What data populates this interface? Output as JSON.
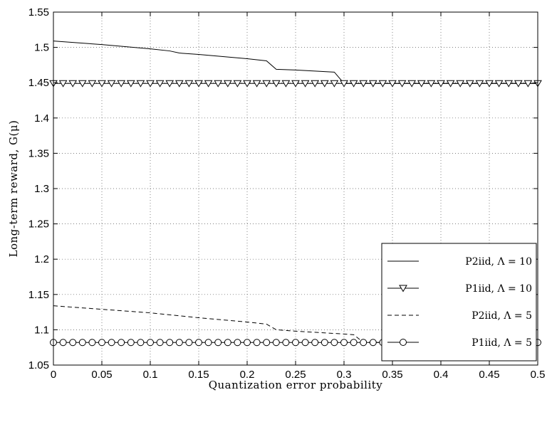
{
  "chart_data": {
    "type": "line",
    "xlabel": "Quantization error probability",
    "ylabel": "Long-term reward, G(μ)",
    "xlim": [
      0,
      0.5
    ],
    "ylim": [
      1.05,
      1.55
    ],
    "grid": true,
    "legend_position": "lower-right",
    "x_ticks": [
      0,
      0.05,
      0.1,
      0.15,
      0.2,
      0.25,
      0.3,
      0.35,
      0.4,
      0.45,
      0.5
    ],
    "x_tick_labels": [
      "0",
      "0.05",
      "0.1",
      "0.15",
      "0.2",
      "0.25",
      "0.3",
      "0.35",
      "0.4",
      "0.45",
      "0.5"
    ],
    "y_ticks": [
      1.05,
      1.1,
      1.15,
      1.2,
      1.25,
      1.3,
      1.35,
      1.4,
      1.45,
      1.5,
      1.55
    ],
    "y_tick_labels": [
      "1.05",
      "1.1",
      "1.15",
      "1.2",
      "1.25",
      "1.3",
      "1.35",
      "1.4",
      "1.45",
      "1.5",
      "1.55"
    ],
    "series": [
      {
        "name": "P2iid, Λ = 10",
        "style": "solid",
        "marker": "none",
        "x": [
          0,
          0.05,
          0.1,
          0.12,
          0.13,
          0.15,
          0.2,
          0.22,
          0.23,
          0.25,
          0.29,
          0.3,
          0.5
        ],
        "y": [
          1.509,
          1.504,
          1.498,
          1.495,
          1.492,
          1.49,
          1.484,
          1.481,
          1.469,
          1.468,
          1.465,
          1.449,
          1.449
        ]
      },
      {
        "name": "P1iid, Λ = 10",
        "style": "solid",
        "marker": "triangle-down",
        "x": [
          0,
          0.01,
          0.02,
          0.03,
          0.04,
          0.05,
          0.06,
          0.07,
          0.08,
          0.09,
          0.1,
          0.11,
          0.12,
          0.13,
          0.14,
          0.15,
          0.16,
          0.17,
          0.18,
          0.19,
          0.2,
          0.21,
          0.22,
          0.23,
          0.24,
          0.25,
          0.26,
          0.27,
          0.28,
          0.29,
          0.3,
          0.31,
          0.32,
          0.33,
          0.34,
          0.35,
          0.36,
          0.37,
          0.38,
          0.39,
          0.4,
          0.41,
          0.42,
          0.43,
          0.44,
          0.45,
          0.46,
          0.47,
          0.48,
          0.49,
          0.5
        ],
        "y": [
          1.449,
          1.449,
          1.449,
          1.449,
          1.449,
          1.449,
          1.449,
          1.449,
          1.449,
          1.449,
          1.449,
          1.449,
          1.449,
          1.449,
          1.449,
          1.449,
          1.449,
          1.449,
          1.449,
          1.449,
          1.449,
          1.449,
          1.449,
          1.449,
          1.449,
          1.449,
          1.449,
          1.449,
          1.449,
          1.449,
          1.449,
          1.449,
          1.449,
          1.449,
          1.449,
          1.449,
          1.449,
          1.449,
          1.449,
          1.449,
          1.449,
          1.449,
          1.449,
          1.449,
          1.449,
          1.449,
          1.449,
          1.449,
          1.449,
          1.449,
          1.449
        ]
      },
      {
        "name": "P2iid, Λ = 5",
        "style": "dashed",
        "marker": "none",
        "x": [
          0,
          0.05,
          0.1,
          0.15,
          0.2,
          0.22,
          0.23,
          0.25,
          0.3,
          0.31,
          0.32,
          0.5
        ],
        "y": [
          1.134,
          1.129,
          1.124,
          1.117,
          1.111,
          1.108,
          1.1,
          1.098,
          1.094,
          1.093,
          1.082,
          1.082
        ]
      },
      {
        "name": "P1iid, Λ = 5",
        "style": "solid",
        "marker": "circle",
        "x": [
          0,
          0.01,
          0.02,
          0.03,
          0.04,
          0.05,
          0.06,
          0.07,
          0.08,
          0.09,
          0.1,
          0.11,
          0.12,
          0.13,
          0.14,
          0.15,
          0.16,
          0.17,
          0.18,
          0.19,
          0.2,
          0.21,
          0.22,
          0.23,
          0.24,
          0.25,
          0.26,
          0.27,
          0.28,
          0.29,
          0.3,
          0.31,
          0.32,
          0.33,
          0.34,
          0.35,
          0.36,
          0.37,
          0.38,
          0.39,
          0.4,
          0.41,
          0.42,
          0.43,
          0.44,
          0.45,
          0.46,
          0.47,
          0.48,
          0.49,
          0.5
        ],
        "y": [
          1.082,
          1.082,
          1.082,
          1.082,
          1.082,
          1.082,
          1.082,
          1.082,
          1.082,
          1.082,
          1.082,
          1.082,
          1.082,
          1.082,
          1.082,
          1.082,
          1.082,
          1.082,
          1.082,
          1.082,
          1.082,
          1.082,
          1.082,
          1.082,
          1.082,
          1.082,
          1.082,
          1.082,
          1.082,
          1.082,
          1.082,
          1.082,
          1.082,
          1.082,
          1.082,
          1.082,
          1.082,
          1.082,
          1.082,
          1.082,
          1.082,
          1.082,
          1.082,
          1.082,
          1.082,
          1.082,
          1.082,
          1.082,
          1.082,
          1.082,
          1.082
        ]
      }
    ]
  }
}
